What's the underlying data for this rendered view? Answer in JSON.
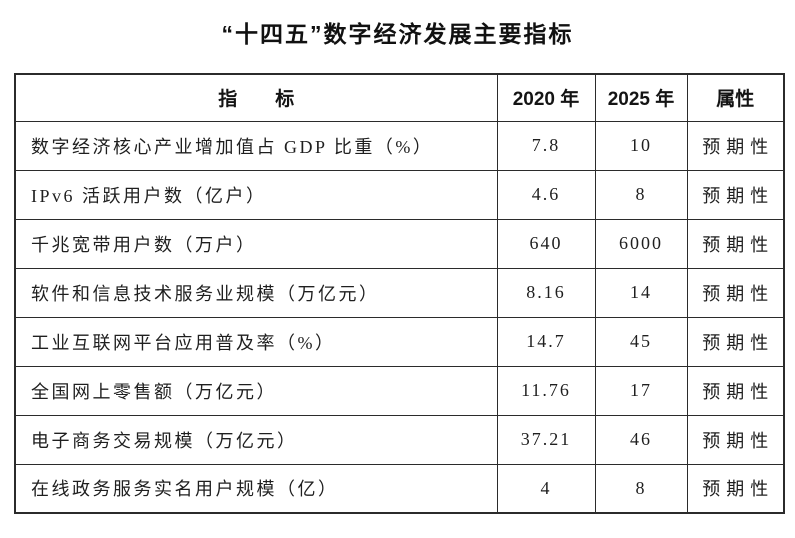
{
  "title": "“十四五”数字经济发展主要指标",
  "table": {
    "headers": {
      "indicator": "指　　标",
      "y2020": "2020 年",
      "y2025": "2025 年",
      "attribute": "属性"
    },
    "rows": [
      {
        "indicator": "数字经济核心产业增加值占 GDP 比重（%）",
        "y2020": "7.8",
        "y2025": "10",
        "attribute": "预期性"
      },
      {
        "indicator": "IPv6 活跃用户数（亿户）",
        "y2020": "4.6",
        "y2025": "8",
        "attribute": "预期性"
      },
      {
        "indicator": "千兆宽带用户数（万户）",
        "y2020": "640",
        "y2025": "6000",
        "attribute": "预期性"
      },
      {
        "indicator": "软件和信息技术服务业规模（万亿元）",
        "y2020": "8.16",
        "y2025": "14",
        "attribute": "预期性"
      },
      {
        "indicator": "工业互联网平台应用普及率（%）",
        "y2020": "14.7",
        "y2025": "45",
        "attribute": "预期性"
      },
      {
        "indicator": "全国网上零售额（万亿元）",
        "y2020": "11.76",
        "y2025": "17",
        "attribute": "预期性"
      },
      {
        "indicator": "电子商务交易规模（万亿元）",
        "y2020": "37.21",
        "y2025": "46",
        "attribute": "预期性"
      },
      {
        "indicator": "在线政务服务实名用户规模（亿）",
        "y2020": "4",
        "y2025": "8",
        "attribute": "预期性"
      }
    ]
  }
}
